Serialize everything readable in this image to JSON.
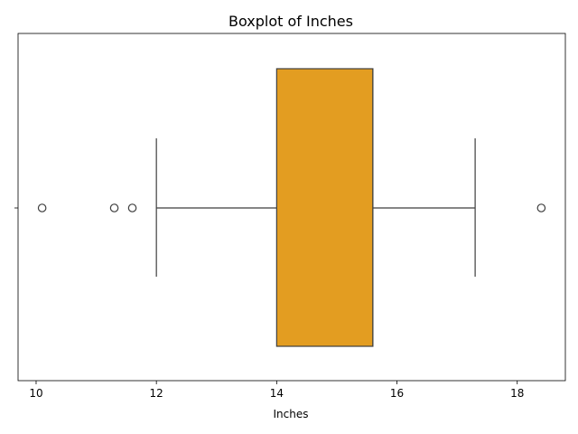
{
  "chart_data": {
    "type": "boxplot",
    "title": "Boxplot of Inches",
    "xlabel": "Inches",
    "ylabel": "",
    "orientation": "horizontal",
    "xlim": [
      9.7,
      18.8
    ],
    "xticks": [
      10,
      12,
      14,
      16,
      18
    ],
    "grid": false,
    "box": {
      "whisker_low": 12.0,
      "q1": 14.0,
      "median": 15.6,
      "q3": 15.6,
      "whisker_high": 17.3,
      "fill": "#e39d21",
      "edge": "#3f3f3f"
    },
    "outliers": [
      10.1,
      11.3,
      11.6,
      18.4
    ]
  }
}
